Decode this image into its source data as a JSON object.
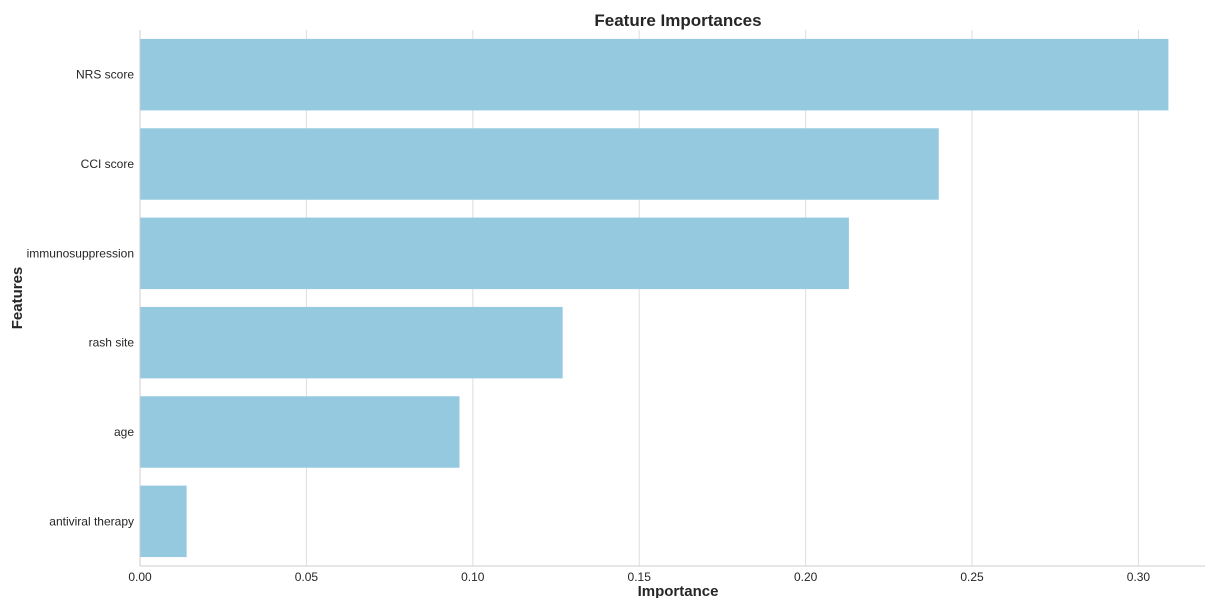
{
  "chart_data": {
    "type": "bar",
    "orientation": "horizontal",
    "title": "Feature Importances",
    "xlabel": "Importance",
    "ylabel": "Features",
    "categories": [
      "NRS score",
      "CCI score",
      "immunosuppression",
      "rash site",
      "age",
      "antiviral therapy"
    ],
    "values": [
      0.309,
      0.24,
      0.213,
      0.127,
      0.096,
      0.014
    ],
    "xlim": [
      0,
      0.32
    ],
    "xticks": [
      "0.00",
      "0.05",
      "0.10",
      "0.15",
      "0.20",
      "0.25",
      "0.30"
    ],
    "grid": "vertical",
    "bar_color": "#95c9df",
    "grid_color": "#dddddd",
    "axis_color": "#cccccc"
  }
}
